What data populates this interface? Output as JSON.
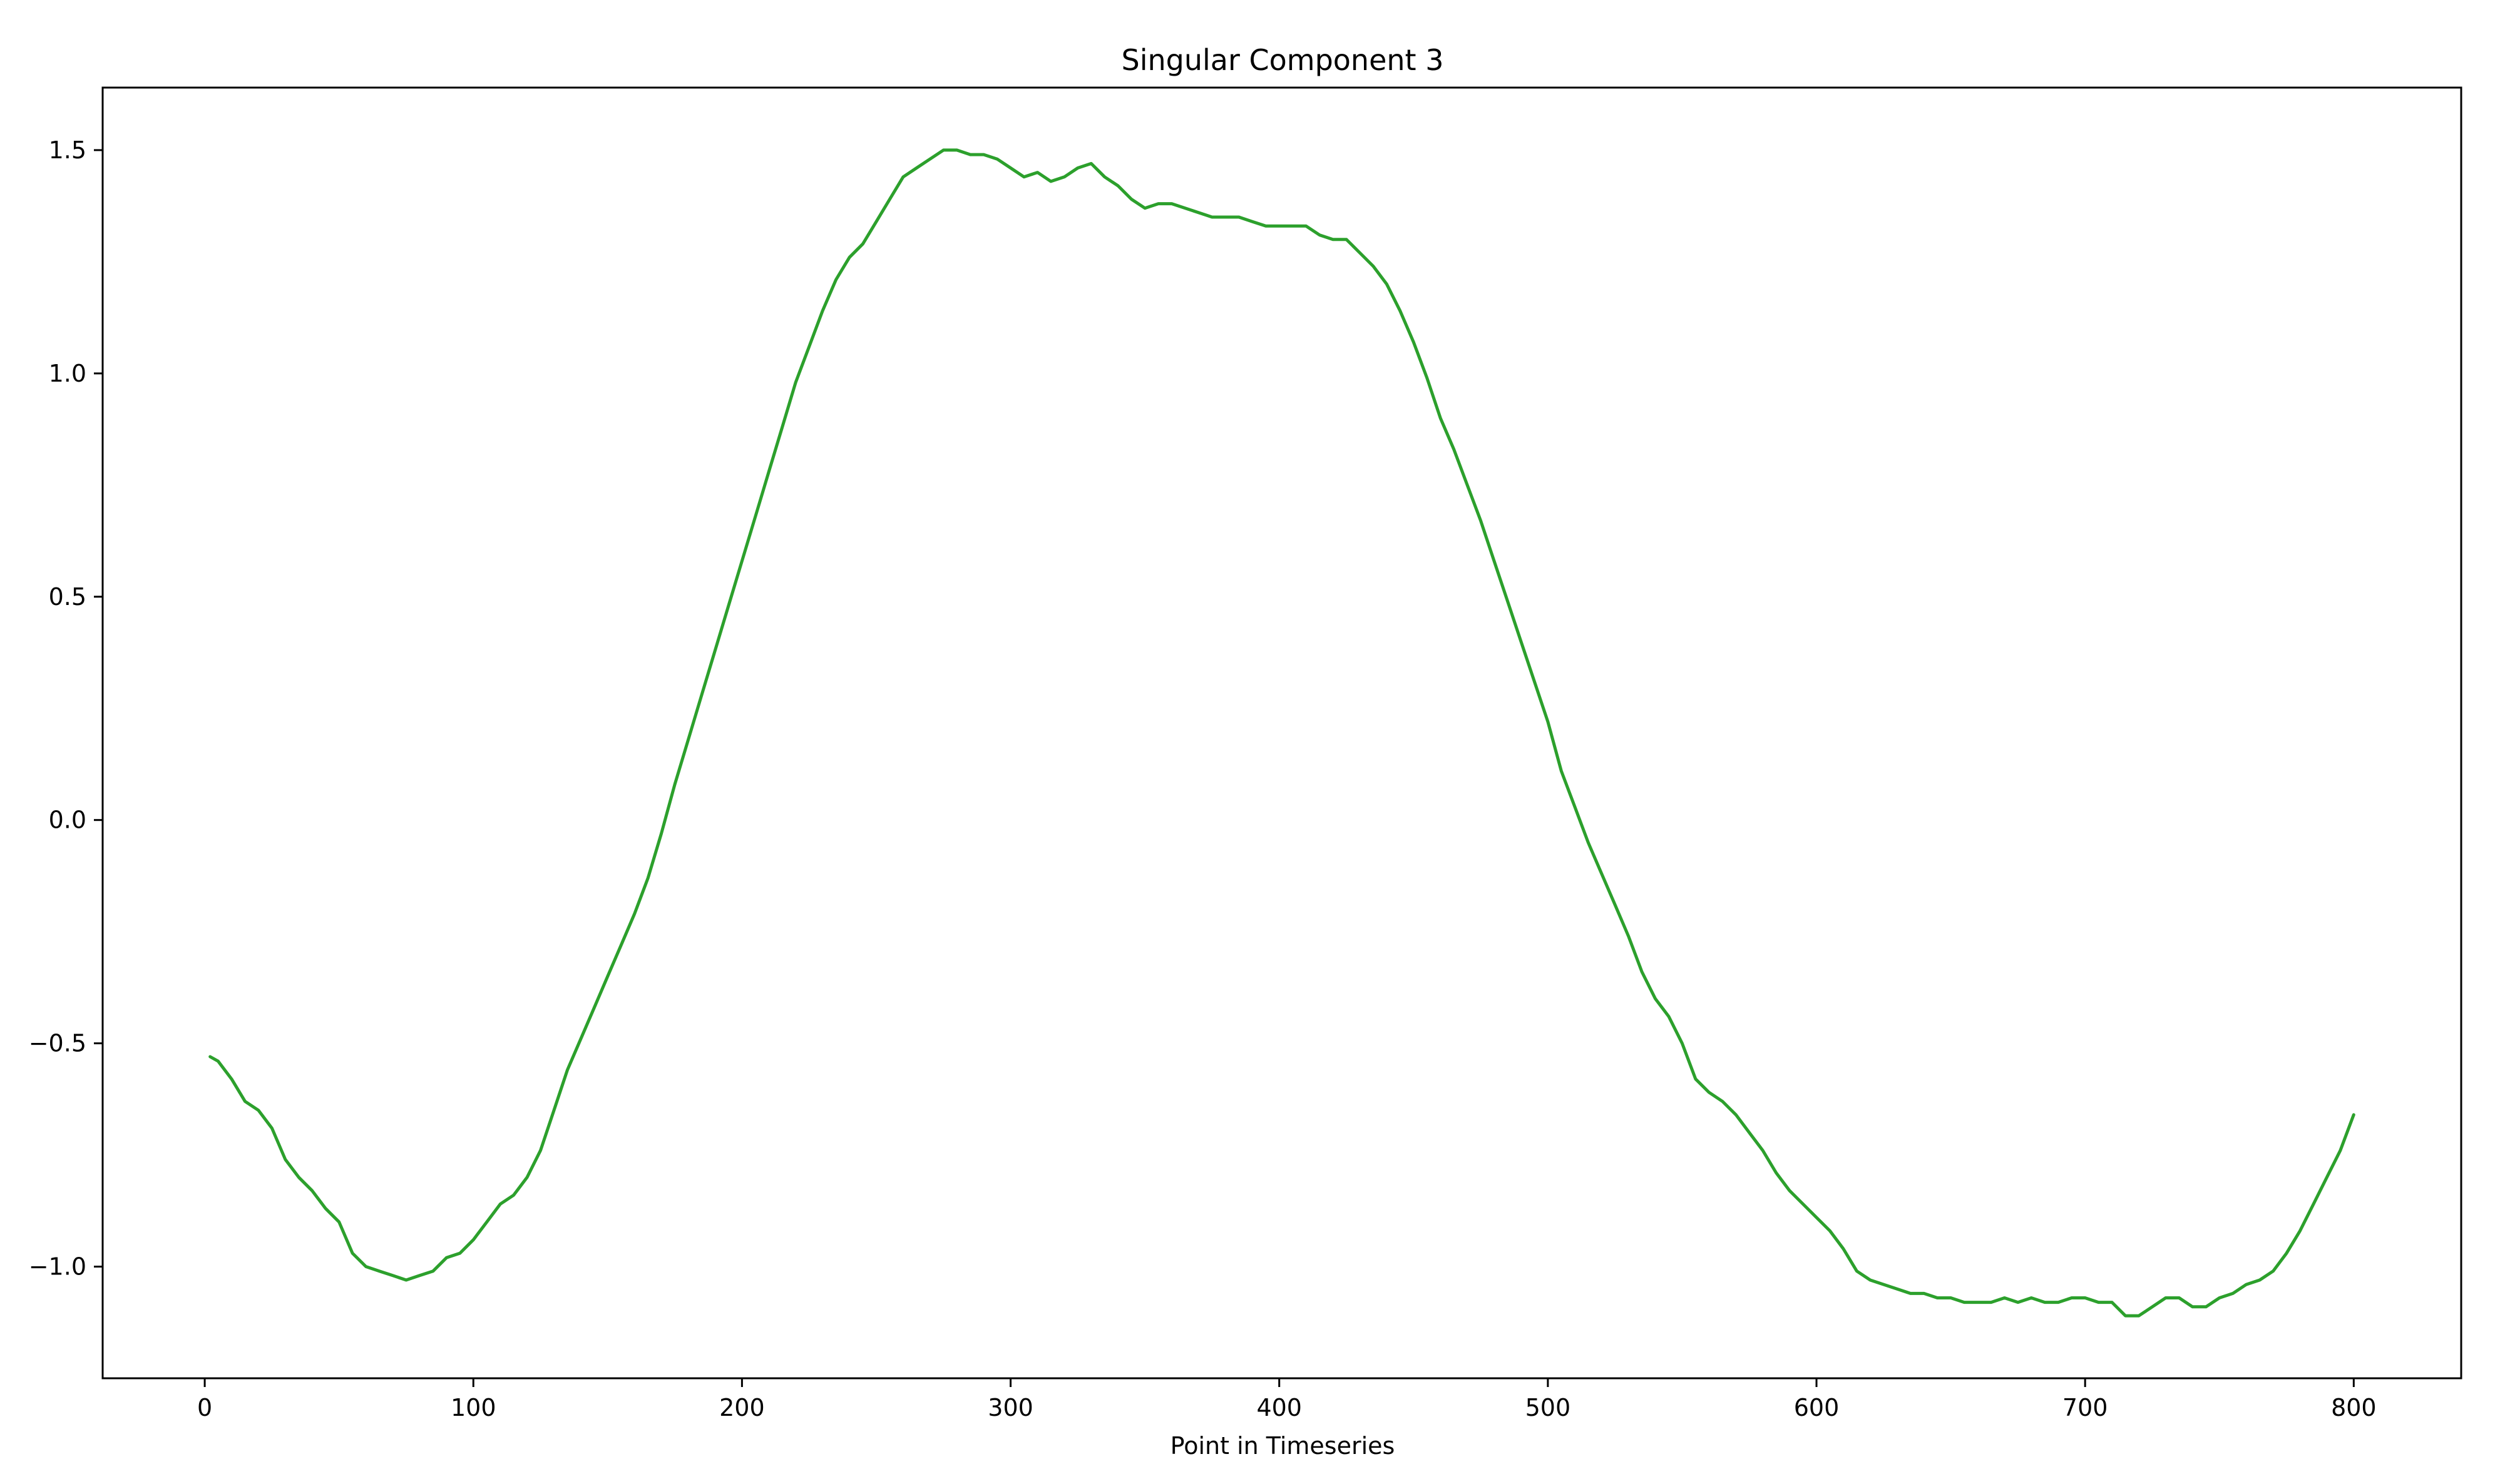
{
  "chart_data": {
    "type": "line",
    "title": "Singular Component 3",
    "xlabel": "Point in Timeseries",
    "ylabel": "",
    "xlim": [
      -38,
      840
    ],
    "ylim": [
      -1.25,
      1.64
    ],
    "xticks": [
      0,
      100,
      200,
      300,
      400,
      500,
      600,
      700,
      800
    ],
    "xtick_labels": [
      "0",
      "100",
      "200",
      "300",
      "400",
      "500",
      "600",
      "700",
      "800"
    ],
    "yticks": [
      -1.0,
      -0.5,
      0.0,
      0.5,
      1.0,
      1.5
    ],
    "ytick_labels": [
      "−1.0",
      "−0.5",
      "0.0",
      "0.5",
      "1.0",
      "1.5"
    ],
    "grid": false,
    "legend": "none",
    "series": [
      {
        "color": "#2ca02c",
        "points": [
          [
            2,
            -0.53
          ],
          [
            5,
            -0.54
          ],
          [
            10,
            -0.58
          ],
          [
            15,
            -0.63
          ],
          [
            20,
            -0.65
          ],
          [
            25,
            -0.69
          ],
          [
            30,
            -0.76
          ],
          [
            35,
            -0.8
          ],
          [
            40,
            -0.83
          ],
          [
            45,
            -0.87
          ],
          [
            50,
            -0.9
          ],
          [
            55,
            -0.97
          ],
          [
            60,
            -1.0
          ],
          [
            65,
            -1.01
          ],
          [
            70,
            -1.02
          ],
          [
            75,
            -1.03
          ],
          [
            80,
            -1.02
          ],
          [
            85,
            -1.01
          ],
          [
            90,
            -0.98
          ],
          [
            95,
            -0.97
          ],
          [
            100,
            -0.94
          ],
          [
            105,
            -0.9
          ],
          [
            110,
            -0.86
          ],
          [
            115,
            -0.84
          ],
          [
            120,
            -0.8
          ],
          [
            125,
            -0.74
          ],
          [
            130,
            -0.65
          ],
          [
            135,
            -0.56
          ],
          [
            140,
            -0.49
          ],
          [
            145,
            -0.42
          ],
          [
            150,
            -0.35
          ],
          [
            155,
            -0.28
          ],
          [
            160,
            -0.21
          ],
          [
            165,
            -0.13
          ],
          [
            170,
            -0.03
          ],
          [
            175,
            0.08
          ],
          [
            180,
            0.18
          ],
          [
            185,
            0.28
          ],
          [
            190,
            0.38
          ],
          [
            195,
            0.48
          ],
          [
            200,
            0.58
          ],
          [
            205,
            0.68
          ],
          [
            210,
            0.78
          ],
          [
            215,
            0.88
          ],
          [
            220,
            0.98
          ],
          [
            225,
            1.06
          ],
          [
            230,
            1.14
          ],
          [
            235,
            1.21
          ],
          [
            240,
            1.26
          ],
          [
            245,
            1.29
          ],
          [
            250,
            1.34
          ],
          [
            255,
            1.39
          ],
          [
            260,
            1.44
          ],
          [
            265,
            1.46
          ],
          [
            270,
            1.48
          ],
          [
            275,
            1.5
          ],
          [
            280,
            1.5
          ],
          [
            285,
            1.49
          ],
          [
            290,
            1.49
          ],
          [
            295,
            1.48
          ],
          [
            300,
            1.46
          ],
          [
            305,
            1.44
          ],
          [
            310,
            1.45
          ],
          [
            315,
            1.43
          ],
          [
            320,
            1.44
          ],
          [
            325,
            1.46
          ],
          [
            330,
            1.47
          ],
          [
            335,
            1.44
          ],
          [
            340,
            1.42
          ],
          [
            345,
            1.39
          ],
          [
            350,
            1.37
          ],
          [
            355,
            1.38
          ],
          [
            360,
            1.38
          ],
          [
            365,
            1.37
          ],
          [
            370,
            1.36
          ],
          [
            375,
            1.35
          ],
          [
            380,
            1.35
          ],
          [
            385,
            1.35
          ],
          [
            390,
            1.34
          ],
          [
            395,
            1.33
          ],
          [
            400,
            1.33
          ],
          [
            405,
            1.33
          ],
          [
            410,
            1.33
          ],
          [
            415,
            1.31
          ],
          [
            420,
            1.3
          ],
          [
            425,
            1.3
          ],
          [
            430,
            1.27
          ],
          [
            435,
            1.24
          ],
          [
            440,
            1.2
          ],
          [
            445,
            1.14
          ],
          [
            450,
            1.07
          ],
          [
            455,
            0.99
          ],
          [
            460,
            0.9
          ],
          [
            465,
            0.83
          ],
          [
            470,
            0.75
          ],
          [
            475,
            0.67
          ],
          [
            480,
            0.58
          ],
          [
            485,
            0.49
          ],
          [
            490,
            0.4
          ],
          [
            495,
            0.31
          ],
          [
            500,
            0.22
          ],
          [
            505,
            0.11
          ],
          [
            510,
            0.03
          ],
          [
            515,
            -0.05
          ],
          [
            520,
            -0.12
          ],
          [
            525,
            -0.19
          ],
          [
            530,
            -0.26
          ],
          [
            535,
            -0.34
          ],
          [
            540,
            -0.4
          ],
          [
            545,
            -0.44
          ],
          [
            550,
            -0.5
          ],
          [
            555,
            -0.58
          ],
          [
            560,
            -0.61
          ],
          [
            565,
            -0.63
          ],
          [
            570,
            -0.66
          ],
          [
            575,
            -0.7
          ],
          [
            580,
            -0.74
          ],
          [
            585,
            -0.79
          ],
          [
            590,
            -0.83
          ],
          [
            595,
            -0.86
          ],
          [
            600,
            -0.89
          ],
          [
            605,
            -0.92
          ],
          [
            610,
            -0.96
          ],
          [
            615,
            -1.01
          ],
          [
            620,
            -1.03
          ],
          [
            625,
            -1.04
          ],
          [
            630,
            -1.05
          ],
          [
            635,
            -1.06
          ],
          [
            640,
            -1.06
          ],
          [
            645,
            -1.07
          ],
          [
            650,
            -1.07
          ],
          [
            655,
            -1.08
          ],
          [
            660,
            -1.08
          ],
          [
            665,
            -1.08
          ],
          [
            670,
            -1.07
          ],
          [
            675,
            -1.08
          ],
          [
            680,
            -1.07
          ],
          [
            685,
            -1.08
          ],
          [
            690,
            -1.08
          ],
          [
            695,
            -1.07
          ],
          [
            700,
            -1.07
          ],
          [
            705,
            -1.08
          ],
          [
            710,
            -1.08
          ],
          [
            715,
            -1.11
          ],
          [
            720,
            -1.11
          ],
          [
            725,
            -1.09
          ],
          [
            730,
            -1.07
          ],
          [
            735,
            -1.07
          ],
          [
            740,
            -1.09
          ],
          [
            745,
            -1.09
          ],
          [
            750,
            -1.07
          ],
          [
            755,
            -1.06
          ],
          [
            760,
            -1.04
          ],
          [
            765,
            -1.03
          ],
          [
            770,
            -1.01
          ],
          [
            775,
            -0.97
          ],
          [
            780,
            -0.92
          ],
          [
            785,
            -0.86
          ],
          [
            790,
            -0.8
          ],
          [
            795,
            -0.74
          ],
          [
            800,
            -0.66
          ]
        ]
      }
    ]
  }
}
